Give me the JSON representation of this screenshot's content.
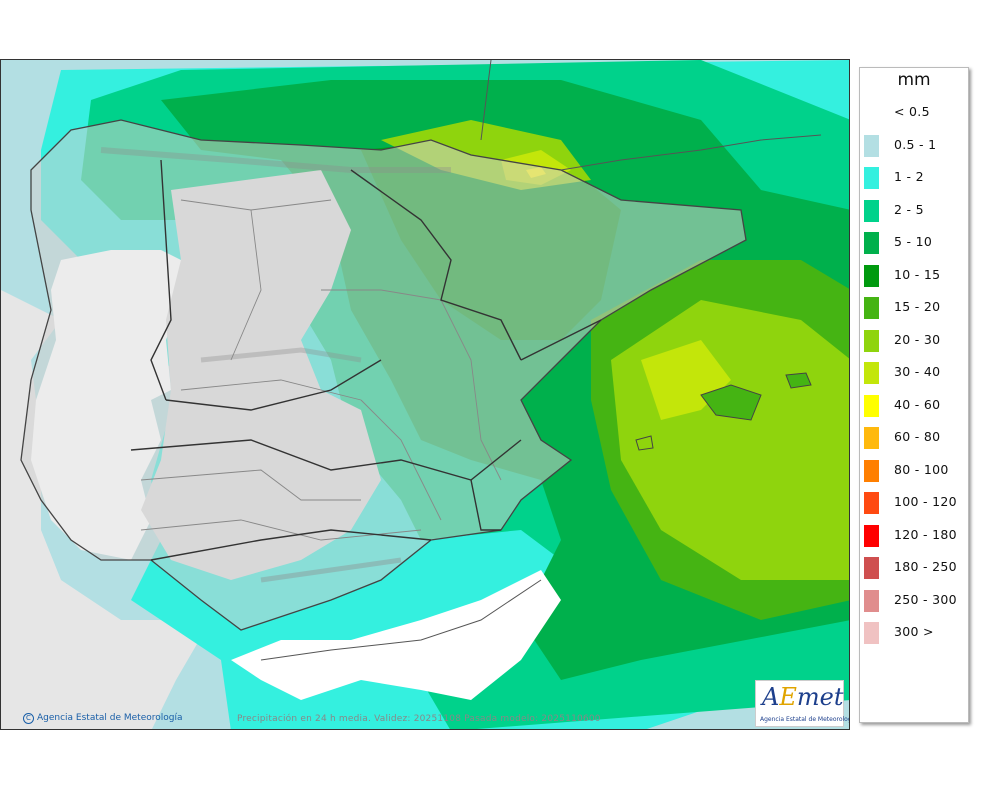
{
  "legend": {
    "unit": "mm",
    "items": [
      {
        "label": "< 0.5",
        "color": "#ffffff"
      },
      {
        "label": "0.5 - 1",
        "color": "#b3dfe3"
      },
      {
        "label": "1 - 2",
        "color": "#34f0df"
      },
      {
        "label": "2 - 5",
        "color": "#00d28b"
      },
      {
        "label": "5 - 10",
        "color": "#00b04c"
      },
      {
        "label": "10 - 15",
        "color": "#009a0f"
      },
      {
        "label": "15 - 20",
        "color": "#45b413"
      },
      {
        "label": "20 - 30",
        "color": "#8fd40d"
      },
      {
        "label": "30 - 40",
        "color": "#c3e60a"
      },
      {
        "label": "40 - 60",
        "color": "#ffff00"
      },
      {
        "label": "60 - 80",
        "color": "#ffb90d"
      },
      {
        "label": "80 - 100",
        "color": "#ff7f00"
      },
      {
        "label": "100 - 120",
        "color": "#ff4a11"
      },
      {
        "label": "120 - 180",
        "color": "#ff0000"
      },
      {
        "label": "180 - 250",
        "color": "#cf4f4f"
      },
      {
        "label": "250 - 300",
        "color": "#e08d8d"
      },
      {
        "label": "300 >",
        "color": "#f0c2c2"
      }
    ]
  },
  "map": {
    "credit": "Agencia Estatal de Meteorología",
    "footer": "Precipitación en 24 h media. Validez: 20251108 Pasada modelo: 2025110600",
    "logo_text": "AEmet",
    "logo_sub": "Agencia Estatal de Meteorología"
  }
}
